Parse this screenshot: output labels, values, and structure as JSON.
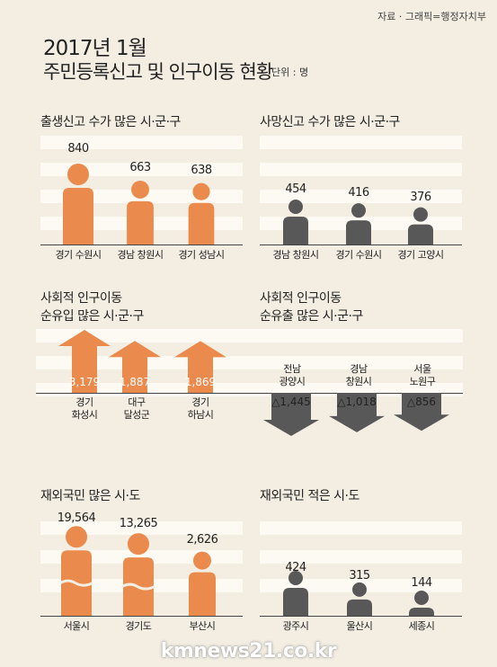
{
  "source": "자료 · 그래픽=행정자치부",
  "title_line1": "2017년 1월",
  "title_line2": "주민등록신고 및 인구이동 현황",
  "unit": "단위 : 명",
  "footer": "kmnews21.co.kr",
  "colors": {
    "orange": "#ea8a4c",
    "dark": "#585858",
    "background": "#f3ede2",
    "stripe": "#fdfaf3"
  },
  "chart_data": [
    {
      "type": "bar",
      "title": "출생신고 수가 많은 시·군·구",
      "categories": [
        "경기 수원시",
        "경남 창원시",
        "경기 성남시"
      ],
      "values": [
        840,
        663,
        638
      ],
      "value_labels": [
        "840",
        "663",
        "638"
      ]
    },
    {
      "type": "bar",
      "title": "사망신고 수가 많은 시·군·구",
      "categories": [
        "경남 창원시",
        "경기 수원시",
        "경기 고양시"
      ],
      "values": [
        454,
        416,
        376
      ],
      "value_labels": [
        "454",
        "416",
        "376"
      ]
    },
    {
      "type": "bar",
      "title_line1": "사회적 인구이동",
      "title_line2": "순유입 많은 시·군·구",
      "categories": [
        "경기 화성시",
        "대구 달성군",
        "경기 하남시"
      ],
      "label_lines": [
        [
          "경기",
          "화성시"
        ],
        [
          "대구",
          "달성군"
        ],
        [
          "경기",
          "하남시"
        ]
      ],
      "values": [
        3179,
        1887,
        1869
      ],
      "value_labels": [
        "3,179",
        "1,887",
        "1,869"
      ]
    },
    {
      "type": "bar",
      "title_line1": "사회적 인구이동",
      "title_line2": "순유출 많은 시·군·구",
      "categories": [
        "전남 광양시",
        "경남 창원시",
        "서울 노원구"
      ],
      "label_lines": [
        [
          "전남",
          "광양시"
        ],
        [
          "경남",
          "창원시"
        ],
        [
          "서울",
          "노원구"
        ]
      ],
      "values": [
        -1445,
        -1018,
        -856
      ],
      "value_labels": [
        "△1,445",
        "△1,018",
        "△856"
      ]
    },
    {
      "type": "bar",
      "title": "재외국민 많은 시·도",
      "categories": [
        "서울시",
        "경기도",
        "부산시"
      ],
      "values": [
        19564,
        13265,
        2626
      ],
      "value_labels": [
        "19,564",
        "13,265",
        "2,626"
      ]
    },
    {
      "type": "bar",
      "title": "재외국민 적은 시·도",
      "categories": [
        "광주시",
        "울산시",
        "세종시"
      ],
      "values": [
        424,
        315,
        144
      ],
      "value_labels": [
        "424",
        "315",
        "144"
      ]
    }
  ]
}
